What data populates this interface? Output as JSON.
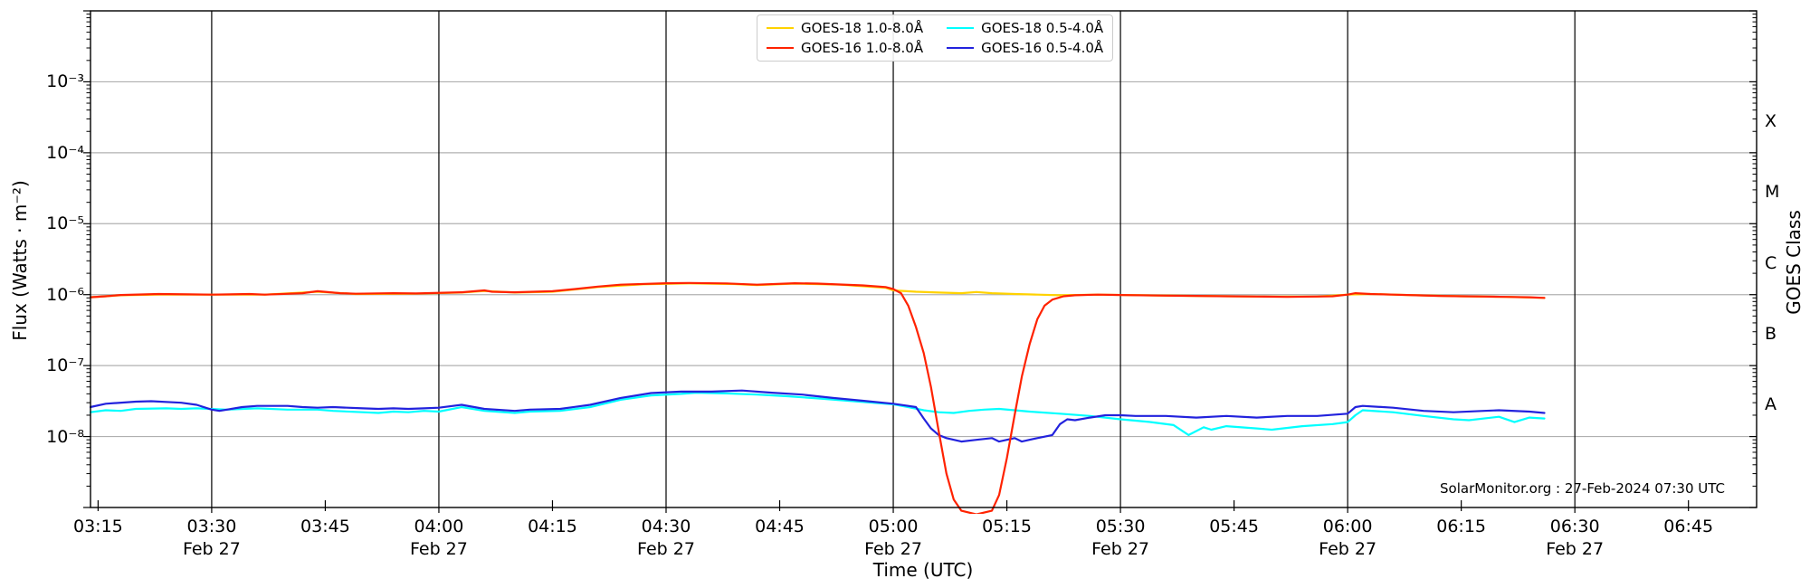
{
  "annotation": "SolarMonitor.org : 27-Feb-2024 07:30 UTC",
  "axes": {
    "xlabel": "Time (UTC)",
    "ylabel": "Flux (Watts · m⁻²)",
    "right_label": "GOES Class",
    "date_label": "Feb 27",
    "x_ticks": [
      {
        "hour": 3.25,
        "label": "03:15"
      },
      {
        "hour": 3.5,
        "label": "03:30"
      },
      {
        "hour": 3.75,
        "label": "03:45"
      },
      {
        "hour": 4.0,
        "label": "04:00"
      },
      {
        "hour": 4.25,
        "label": "04:15"
      },
      {
        "hour": 4.5,
        "label": "04:30"
      },
      {
        "hour": 4.75,
        "label": "04:45"
      },
      {
        "hour": 5.0,
        "label": "05:00"
      },
      {
        "hour": 5.25,
        "label": "05:15"
      },
      {
        "hour": 5.5,
        "label": "05:30"
      },
      {
        "hour": 5.75,
        "label": "05:45"
      },
      {
        "hour": 6.0,
        "label": "06:00"
      },
      {
        "hour": 6.25,
        "label": "06:15"
      },
      {
        "hour": 6.5,
        "label": "06:30"
      },
      {
        "hour": 6.75,
        "label": "06:45"
      }
    ],
    "x_grid_hours": [
      3.5,
      4.0,
      4.5,
      5.0,
      5.5,
      6.0,
      6.5
    ],
    "date_hours": [
      3.5,
      4.0,
      4.5,
      5.0,
      5.5,
      6.0,
      6.5
    ],
    "y_ticks": [
      {
        "exp": -3,
        "label": "10⁻³"
      },
      {
        "exp": -4,
        "label": "10⁻⁴"
      },
      {
        "exp": -5,
        "label": "10⁻⁵"
      },
      {
        "exp": -6,
        "label": "10⁻⁶"
      },
      {
        "exp": -7,
        "label": "10⁻⁷"
      },
      {
        "exp": -8,
        "label": "10⁻⁸"
      }
    ],
    "goes_classes": [
      {
        "label": "X",
        "center_exp": -3.5
      },
      {
        "label": "M",
        "center_exp": -4.5
      },
      {
        "label": "C",
        "center_exp": -5.5
      },
      {
        "label": "B",
        "center_exp": -6.5
      },
      {
        "label": "A",
        "center_exp": -7.5
      }
    ],
    "x_range_hours": [
      3.2333,
      6.9
    ],
    "y_range_exp": [
      -9,
      -2
    ],
    "grid_color_h": "#b0b0b0",
    "grid_color_v": "#000000"
  },
  "legend": {
    "items": [
      {
        "label": "GOES-18 1.0-8.0Å",
        "color": "#ffd200"
      },
      {
        "label": "GOES-16 1.0-8.0Å",
        "color": "#ff2200"
      },
      {
        "label": "GOES-18 0.5-4.0Å",
        "color": "#00ffff"
      },
      {
        "label": "GOES-16 0.5-4.0Å",
        "color": "#2222dd"
      }
    ]
  },
  "chart_data": {
    "type": "line",
    "title": "",
    "xlabel": "Time (UTC)",
    "ylabel": "Flux (Watts · m⁻²)",
    "x_unit": "decimal_hours_utc_feb27_2024",
    "y_unit": "W/m^2 (log scale)",
    "xlim_hours": [
      3.2333,
      6.9
    ],
    "ylim": [
      1e-09,
      0.01
    ],
    "grid": "major",
    "legend_position": "top-center",
    "series": [
      {
        "name": "GOES-18 1.0-8.0Å",
        "color": "#ffd200",
        "points": [
          [
            3.233,
            9.2e-07
          ],
          [
            3.3,
            9.8e-07
          ],
          [
            3.383,
            1e-06
          ],
          [
            3.5,
            1e-06
          ],
          [
            3.617,
            1e-06
          ],
          [
            3.733,
            1.1e-06
          ],
          [
            3.817,
            1.02e-06
          ],
          [
            3.95,
            1.03e-06
          ],
          [
            4.05,
            1.07e-06
          ],
          [
            4.1,
            1.13e-06
          ],
          [
            4.167,
            1.07e-06
          ],
          [
            4.25,
            1.1e-06
          ],
          [
            4.35,
            1.28e-06
          ],
          [
            4.45,
            1.4e-06
          ],
          [
            4.55,
            1.44e-06
          ],
          [
            4.65,
            1.41e-06
          ],
          [
            4.7,
            1.36e-06
          ],
          [
            4.783,
            1.43e-06
          ],
          [
            4.883,
            1.38e-06
          ],
          [
            4.983,
            1.25e-06
          ],
          [
            5.0,
            1.15e-06
          ],
          [
            5.05,
            1.1e-06
          ],
          [
            5.1,
            1.07e-06
          ],
          [
            5.15,
            1.05e-06
          ],
          [
            5.183,
            1.09e-06
          ],
          [
            5.217,
            1.05e-06
          ],
          [
            5.267,
            1.02e-06
          ],
          [
            5.317,
            1e-06
          ],
          [
            5.367,
            9.8e-07
          ],
          [
            5.45,
            1e-06
          ],
          [
            5.55,
            9.8e-07
          ],
          [
            5.667,
            9.6e-07
          ],
          [
            5.8,
            9.4e-07
          ],
          [
            5.933,
            9.4e-07
          ],
          [
            6.0,
            1e-06
          ],
          [
            6.05,
            1.02e-06
          ],
          [
            6.15,
            9.8e-07
          ],
          [
            6.25,
            9.5e-07
          ],
          [
            6.35,
            9.3e-07
          ],
          [
            6.433,
            9e-07
          ]
        ]
      },
      {
        "name": "GOES-18 0.5-4.0Å",
        "color": "#00ffff",
        "points": [
          [
            3.233,
            2.2e-08
          ],
          [
            3.267,
            2.35e-08
          ],
          [
            3.3,
            2.3e-08
          ],
          [
            3.333,
            2.45e-08
          ],
          [
            3.4,
            2.5e-08
          ],
          [
            3.433,
            2.45e-08
          ],
          [
            3.467,
            2.5e-08
          ],
          [
            3.533,
            2.4e-08
          ],
          [
            3.6,
            2.5e-08
          ],
          [
            3.667,
            2.4e-08
          ],
          [
            3.733,
            2.4e-08
          ],
          [
            3.767,
            2.3e-08
          ],
          [
            3.833,
            2.2e-08
          ],
          [
            3.867,
            2.15e-08
          ],
          [
            3.9,
            2.25e-08
          ],
          [
            3.933,
            2.2e-08
          ],
          [
            3.967,
            2.3e-08
          ],
          [
            4.0,
            2.25e-08
          ],
          [
            4.05,
            2.6e-08
          ],
          [
            4.1,
            2.3e-08
          ],
          [
            4.167,
            2.15e-08
          ],
          [
            4.2,
            2.25e-08
          ],
          [
            4.267,
            2.3e-08
          ],
          [
            4.333,
            2.6e-08
          ],
          [
            4.4,
            3.3e-08
          ],
          [
            4.467,
            3.8e-08
          ],
          [
            4.533,
            4e-08
          ],
          [
            4.567,
            4.15e-08
          ],
          [
            4.633,
            4.05e-08
          ],
          [
            4.7,
            3.9e-08
          ],
          [
            4.767,
            3.7e-08
          ],
          [
            4.833,
            3.45e-08
          ],
          [
            4.9,
            3.2e-08
          ],
          [
            4.967,
            2.95e-08
          ],
          [
            5.0,
            2.85e-08
          ],
          [
            5.033,
            2.6e-08
          ],
          [
            5.067,
            2.35e-08
          ],
          [
            5.1,
            2.2e-08
          ],
          [
            5.133,
            2.15e-08
          ],
          [
            5.167,
            2.3e-08
          ],
          [
            5.2,
            2.4e-08
          ],
          [
            5.233,
            2.45e-08
          ],
          [
            5.267,
            2.35e-08
          ],
          [
            5.3,
            2.25e-08
          ],
          [
            5.367,
            2.1e-08
          ],
          [
            5.433,
            1.95e-08
          ],
          [
            5.5,
            1.75e-08
          ],
          [
            5.567,
            1.6e-08
          ],
          [
            5.617,
            1.45e-08
          ],
          [
            5.65,
            1.05e-08
          ],
          [
            5.683,
            1.35e-08
          ],
          [
            5.7,
            1.25e-08
          ],
          [
            5.733,
            1.4e-08
          ],
          [
            5.8,
            1.3e-08
          ],
          [
            5.833,
            1.25e-08
          ],
          [
            5.9,
            1.4e-08
          ],
          [
            5.967,
            1.5e-08
          ],
          [
            6.0,
            1.6e-08
          ],
          [
            6.017,
            2e-08
          ],
          [
            6.033,
            2.35e-08
          ],
          [
            6.1,
            2.2e-08
          ],
          [
            6.167,
            1.95e-08
          ],
          [
            6.233,
            1.75e-08
          ],
          [
            6.267,
            1.7e-08
          ],
          [
            6.333,
            1.9e-08
          ],
          [
            6.367,
            1.6e-08
          ],
          [
            6.4,
            1.85e-08
          ],
          [
            6.433,
            1.8e-08
          ]
        ]
      },
      {
        "name": "GOES-16 0.5-4.0Å",
        "color": "#2222dd",
        "points": [
          [
            3.233,
            2.6e-08
          ],
          [
            3.267,
            2.9e-08
          ],
          [
            3.333,
            3.1e-08
          ],
          [
            3.367,
            3.15e-08
          ],
          [
            3.433,
            3e-08
          ],
          [
            3.467,
            2.8e-08
          ],
          [
            3.5,
            2.4e-08
          ],
          [
            3.517,
            2.3e-08
          ],
          [
            3.567,
            2.6e-08
          ],
          [
            3.6,
            2.7e-08
          ],
          [
            3.667,
            2.7e-08
          ],
          [
            3.7,
            2.6e-08
          ],
          [
            3.733,
            2.55e-08
          ],
          [
            3.767,
            2.6e-08
          ],
          [
            3.833,
            2.5e-08
          ],
          [
            3.867,
            2.45e-08
          ],
          [
            3.9,
            2.5e-08
          ],
          [
            3.933,
            2.45e-08
          ],
          [
            3.967,
            2.5e-08
          ],
          [
            4.0,
            2.55e-08
          ],
          [
            4.05,
            2.8e-08
          ],
          [
            4.1,
            2.45e-08
          ],
          [
            4.167,
            2.3e-08
          ],
          [
            4.2,
            2.4e-08
          ],
          [
            4.267,
            2.45e-08
          ],
          [
            4.333,
            2.8e-08
          ],
          [
            4.4,
            3.5e-08
          ],
          [
            4.467,
            4.1e-08
          ],
          [
            4.533,
            4.3e-08
          ],
          [
            4.6,
            4.3e-08
          ],
          [
            4.667,
            4.45e-08
          ],
          [
            4.733,
            4.15e-08
          ],
          [
            4.8,
            3.9e-08
          ],
          [
            4.867,
            3.5e-08
          ],
          [
            4.933,
            3.2e-08
          ],
          [
            5.0,
            2.9e-08
          ],
          [
            5.033,
            2.7e-08
          ],
          [
            5.05,
            2.6e-08
          ],
          [
            5.067,
            1.8e-08
          ],
          [
            5.083,
            1.3e-08
          ],
          [
            5.1,
            1.05e-08
          ],
          [
            5.117,
            9.5e-09
          ],
          [
            5.15,
            8.5e-09
          ],
          [
            5.183,
            9e-09
          ],
          [
            5.217,
            9.5e-09
          ],
          [
            5.233,
            8.5e-09
          ],
          [
            5.267,
            9.5e-09
          ],
          [
            5.283,
            8.5e-09
          ],
          [
            5.317,
            9.5e-09
          ],
          [
            5.35,
            1.05e-08
          ],
          [
            5.367,
            1.5e-08
          ],
          [
            5.383,
            1.75e-08
          ],
          [
            5.4,
            1.7e-08
          ],
          [
            5.433,
            1.85e-08
          ],
          [
            5.467,
            2e-08
          ],
          [
            5.5,
            2e-08
          ],
          [
            5.533,
            1.95e-08
          ],
          [
            5.6,
            1.95e-08
          ],
          [
            5.667,
            1.85e-08
          ],
          [
            5.733,
            1.95e-08
          ],
          [
            5.8,
            1.85e-08
          ],
          [
            5.867,
            1.95e-08
          ],
          [
            5.933,
            1.95e-08
          ],
          [
            6.0,
            2.1e-08
          ],
          [
            6.017,
            2.6e-08
          ],
          [
            6.033,
            2.7e-08
          ],
          [
            6.1,
            2.55e-08
          ],
          [
            6.167,
            2.3e-08
          ],
          [
            6.233,
            2.2e-08
          ],
          [
            6.3,
            2.3e-08
          ],
          [
            6.333,
            2.35e-08
          ],
          [
            6.4,
            2.25e-08
          ],
          [
            6.433,
            2.15e-08
          ]
        ]
      },
      {
        "name": "GOES-16 1.0-8.0Å",
        "color": "#ff2200",
        "points": [
          [
            3.233,
            9.2e-07
          ],
          [
            3.267,
            9.5e-07
          ],
          [
            3.3,
            9.9e-07
          ],
          [
            3.383,
            1.02e-06
          ],
          [
            3.45,
            1.01e-06
          ],
          [
            3.5,
            1e-06
          ],
          [
            3.583,
            1.02e-06
          ],
          [
            3.617,
            1e-06
          ],
          [
            3.7,
            1.05e-06
          ],
          [
            3.733,
            1.12e-06
          ],
          [
            3.783,
            1.05e-06
          ],
          [
            3.817,
            1.03e-06
          ],
          [
            3.9,
            1.05e-06
          ],
          [
            3.95,
            1.04e-06
          ],
          [
            4.05,
            1.08e-06
          ],
          [
            4.1,
            1.15e-06
          ],
          [
            4.117,
            1.1e-06
          ],
          [
            4.167,
            1.08e-06
          ],
          [
            4.25,
            1.12e-06
          ],
          [
            4.3,
            1.2e-06
          ],
          [
            4.35,
            1.3e-06
          ],
          [
            4.4,
            1.38e-06
          ],
          [
            4.5,
            1.45e-06
          ],
          [
            4.55,
            1.46e-06
          ],
          [
            4.633,
            1.44e-06
          ],
          [
            4.7,
            1.38e-06
          ],
          [
            4.783,
            1.45e-06
          ],
          [
            4.833,
            1.43e-06
          ],
          [
            4.933,
            1.35e-06
          ],
          [
            4.983,
            1.28e-06
          ],
          [
            5.0,
            1.2e-06
          ],
          [
            5.017,
            1.05e-06
          ],
          [
            5.033,
            7e-07
          ],
          [
            5.05,
            3.5e-07
          ],
          [
            5.067,
            1.5e-07
          ],
          [
            5.083,
            5e-08
          ],
          [
            5.1,
            1.2e-08
          ],
          [
            5.117,
            3e-09
          ],
          [
            5.133,
            1.3e-09
          ],
          [
            5.15,
            9e-10
          ],
          [
            5.183,
            8e-10
          ],
          [
            5.217,
            9e-10
          ],
          [
            5.233,
            1.5e-09
          ],
          [
            5.25,
            5e-09
          ],
          [
            5.267,
            2e-08
          ],
          [
            5.283,
            7e-08
          ],
          [
            5.3,
            2e-07
          ],
          [
            5.317,
            4.5e-07
          ],
          [
            5.333,
            7e-07
          ],
          [
            5.35,
            8.5e-07
          ],
          [
            5.375,
            9.5e-07
          ],
          [
            5.4,
            9.8e-07
          ],
          [
            5.45,
            1e-06
          ],
          [
            5.5,
            9.9e-07
          ],
          [
            5.6,
            9.7e-07
          ],
          [
            5.667,
            9.6e-07
          ],
          [
            5.733,
            9.5e-07
          ],
          [
            5.8,
            9.4e-07
          ],
          [
            5.867,
            9.3e-07
          ],
          [
            5.933,
            9.4e-07
          ],
          [
            5.967,
            9.5e-07
          ],
          [
            6.0,
            1e-06
          ],
          [
            6.017,
            1.05e-06
          ],
          [
            6.05,
            1.02e-06
          ],
          [
            6.1,
            1e-06
          ],
          [
            6.15,
            9.8e-07
          ],
          [
            6.2,
            9.6e-07
          ],
          [
            6.25,
            9.5e-07
          ],
          [
            6.3,
            9.4e-07
          ],
          [
            6.35,
            9.3e-07
          ],
          [
            6.4,
            9.2e-07
          ],
          [
            6.433,
            9e-07
          ]
        ]
      }
    ]
  }
}
